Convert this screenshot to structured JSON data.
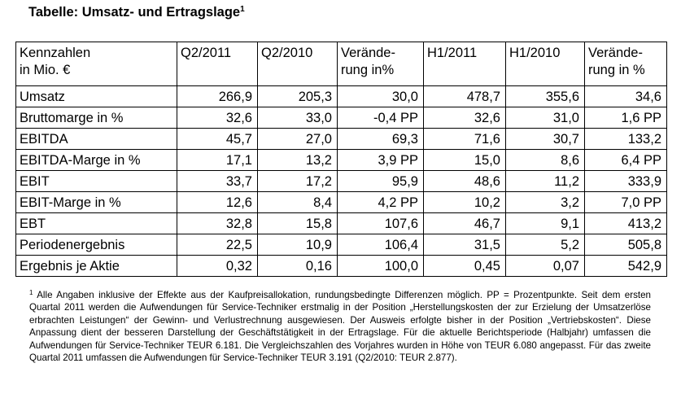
{
  "title": {
    "text": "Tabelle: Umsatz- und Ertragslage",
    "footnote_marker": "1"
  },
  "table": {
    "headers": [
      {
        "line1": "Kennzahlen",
        "line2": "in Mio. €"
      },
      {
        "line1": "Q2/2011",
        "line2": ""
      },
      {
        "line1": "Q2/2010",
        "line2": ""
      },
      {
        "line1": "Verände-",
        "line2": "rung in%"
      },
      {
        "line1": "H1/2011",
        "line2": ""
      },
      {
        "line1": "H1/2010",
        "line2": ""
      },
      {
        "line1": "Verände-",
        "line2": "rung in %"
      }
    ],
    "rows": [
      {
        "label": "Umsatz",
        "q2_2011": "266,9",
        "q2_2010": "205,3",
        "change_q": "30,0",
        "h1_2011": "478,7",
        "h1_2010": "355,6",
        "change_h": "34,6"
      },
      {
        "label": "Bruttomarge in %",
        "q2_2011": "32,6",
        "q2_2010": "33,0",
        "change_q": "-0,4 PP",
        "h1_2011": "32,6",
        "h1_2010": "31,0",
        "change_h": "1,6 PP"
      },
      {
        "label": "EBITDA",
        "q2_2011": "45,7",
        "q2_2010": "27,0",
        "change_q": "69,3",
        "h1_2011": "71,6",
        "h1_2010": "30,7",
        "change_h": "133,2"
      },
      {
        "label": "EBITDA-Marge in %",
        "q2_2011": "17,1",
        "q2_2010": "13,2",
        "change_q": "3,9 PP",
        "h1_2011": "15,0",
        "h1_2010": "8,6",
        "change_h": "6,4 PP"
      },
      {
        "label": "EBIT",
        "q2_2011": "33,7",
        "q2_2010": "17,2",
        "change_q": "95,9",
        "h1_2011": "48,6",
        "h1_2010": "11,2",
        "change_h": "333,9"
      },
      {
        "label": "EBIT-Marge in %",
        "q2_2011": "12,6",
        "q2_2010": "8,4",
        "change_q": "4,2 PP",
        "h1_2011": "10,2",
        "h1_2010": "3,2",
        "change_h": "7,0 PP"
      },
      {
        "label": "EBT",
        "q2_2011": "32,8",
        "q2_2010": "15,8",
        "change_q": "107,6",
        "h1_2011": "46,7",
        "h1_2010": "9,1",
        "change_h": "413,2"
      },
      {
        "label": "Periodenergebnis",
        "q2_2011": "22,5",
        "q2_2010": "10,9",
        "change_q": "106,4",
        "h1_2011": "31,5",
        "h1_2010": "5,2",
        "change_h": "505,8"
      },
      {
        "label": "Ergebnis je Aktie",
        "q2_2011": "0,32",
        "q2_2010": "0,16",
        "change_q": "100,0",
        "h1_2011": "0,45",
        "h1_2010": "0,07",
        "change_h": "542,9"
      }
    ]
  },
  "footnote": {
    "marker": "1",
    "text": " Alle Angaben inklusive der Effekte aus der Kaufpreisallokation, rundungsbedingte Differenzen möglich. PP = Prozentpunkte. Seit dem ersten Quartal 2011 werden die Aufwendungen für Service-Techniker erstmalig in der Position „Herstellungskosten der zur Erzielung der Umsatzerlöse erbrachten Leistungen“ der Gewinn- und Verlustrechnung ausgewiesen. Der Ausweis erfolgte bisher in der Position „Vertriebskosten“. Diese Anpassung dient der besseren Darstellung der Geschäftstätigkeit in der Ertragslage. Für die aktuelle Berichtsperiode (Halbjahr) umfassen die Aufwendungen für Service-Techniker TEUR 6.181. Die Vergleichszahlen des Vorjahres wurden in Höhe von TEUR 6.080 angepasst. Für das zweite Quartal 2011 umfassen die Aufwendungen für Service-Techniker TEUR 3.191 (Q2/2010: TEUR 2.877)."
  }
}
